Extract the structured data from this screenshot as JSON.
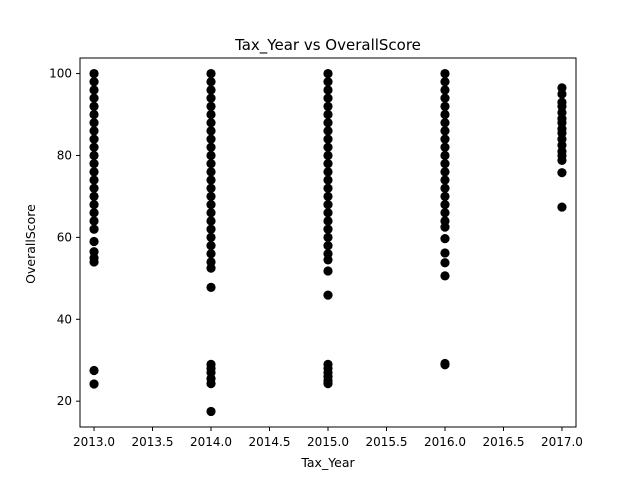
{
  "chart_data": {
    "type": "scatter",
    "title": "Tax_Year vs OverallScore",
    "xlabel": "Tax_Year",
    "ylabel": "OverallScore",
    "xlim": [
      2012.88,
      2017.12
    ],
    "ylim": [
      13.7,
      103.8
    ],
    "x_ticks": [
      2013.0,
      2013.5,
      2014.0,
      2014.5,
      2015.0,
      2015.5,
      2016.0,
      2016.5,
      2017.0
    ],
    "x_tick_labels": [
      "2013.0",
      "2013.5",
      "2014.0",
      "2014.5",
      "2015.0",
      "2015.5",
      "2016.0",
      "2016.5",
      "2017.0"
    ],
    "y_ticks": [
      20,
      40,
      60,
      80,
      100
    ],
    "y_tick_labels": [
      "20",
      "40",
      "60",
      "80",
      "100"
    ],
    "grid": false,
    "marker_color": "#000000",
    "series": [
      {
        "points": [
          {
            "x": 2013,
            "y": 100
          },
          {
            "x": 2013,
            "y": 98
          },
          {
            "x": 2013,
            "y": 96
          },
          {
            "x": 2013,
            "y": 94
          },
          {
            "x": 2013,
            "y": 92
          },
          {
            "x": 2013,
            "y": 90
          },
          {
            "x": 2013,
            "y": 88
          },
          {
            "x": 2013,
            "y": 86
          },
          {
            "x": 2013,
            "y": 84
          },
          {
            "x": 2013,
            "y": 82
          },
          {
            "x": 2013,
            "y": 80
          },
          {
            "x": 2013,
            "y": 78
          },
          {
            "x": 2013,
            "y": 76
          },
          {
            "x": 2013,
            "y": 74
          },
          {
            "x": 2013,
            "y": 72
          },
          {
            "x": 2013,
            "y": 70
          },
          {
            "x": 2013,
            "y": 68
          },
          {
            "x": 2013,
            "y": 66
          },
          {
            "x": 2013,
            "y": 64
          },
          {
            "x": 2013,
            "y": 62
          },
          {
            "x": 2013,
            "y": 59
          },
          {
            "x": 2013,
            "y": 56.5
          },
          {
            "x": 2013,
            "y": 55
          },
          {
            "x": 2013,
            "y": 54
          },
          {
            "x": 2013,
            "y": 27.5
          },
          {
            "x": 2013,
            "y": 24.2
          },
          {
            "x": 2014,
            "y": 100
          },
          {
            "x": 2014,
            "y": 98
          },
          {
            "x": 2014,
            "y": 96
          },
          {
            "x": 2014,
            "y": 94
          },
          {
            "x": 2014,
            "y": 92
          },
          {
            "x": 2014,
            "y": 90
          },
          {
            "x": 2014,
            "y": 88
          },
          {
            "x": 2014,
            "y": 86
          },
          {
            "x": 2014,
            "y": 84
          },
          {
            "x": 2014,
            "y": 82
          },
          {
            "x": 2014,
            "y": 80
          },
          {
            "x": 2014,
            "y": 78
          },
          {
            "x": 2014,
            "y": 76
          },
          {
            "x": 2014,
            "y": 74
          },
          {
            "x": 2014,
            "y": 72
          },
          {
            "x": 2014,
            "y": 70
          },
          {
            "x": 2014,
            "y": 68
          },
          {
            "x": 2014,
            "y": 66
          },
          {
            "x": 2014,
            "y": 64
          },
          {
            "x": 2014,
            "y": 62
          },
          {
            "x": 2014,
            "y": 60
          },
          {
            "x": 2014,
            "y": 58
          },
          {
            "x": 2014,
            "y": 56
          },
          {
            "x": 2014,
            "y": 54
          },
          {
            "x": 2014,
            "y": 52.5
          },
          {
            "x": 2014,
            "y": 47.8
          },
          {
            "x": 2014,
            "y": 29
          },
          {
            "x": 2014,
            "y": 28
          },
          {
            "x": 2014,
            "y": 27
          },
          {
            "x": 2014,
            "y": 25.5
          },
          {
            "x": 2014,
            "y": 24.3
          },
          {
            "x": 2014,
            "y": 17.5
          },
          {
            "x": 2015,
            "y": 100
          },
          {
            "x": 2015,
            "y": 98
          },
          {
            "x": 2015,
            "y": 96
          },
          {
            "x": 2015,
            "y": 94
          },
          {
            "x": 2015,
            "y": 92
          },
          {
            "x": 2015,
            "y": 90
          },
          {
            "x": 2015,
            "y": 88
          },
          {
            "x": 2015,
            "y": 86
          },
          {
            "x": 2015,
            "y": 84
          },
          {
            "x": 2015,
            "y": 82
          },
          {
            "x": 2015,
            "y": 80
          },
          {
            "x": 2015,
            "y": 78
          },
          {
            "x": 2015,
            "y": 76
          },
          {
            "x": 2015,
            "y": 74
          },
          {
            "x": 2015,
            "y": 72
          },
          {
            "x": 2015,
            "y": 70
          },
          {
            "x": 2015,
            "y": 68
          },
          {
            "x": 2015,
            "y": 66
          },
          {
            "x": 2015,
            "y": 64
          },
          {
            "x": 2015,
            "y": 62
          },
          {
            "x": 2015,
            "y": 60
          },
          {
            "x": 2015,
            "y": 58
          },
          {
            "x": 2015,
            "y": 56
          },
          {
            "x": 2015,
            "y": 54.5
          },
          {
            "x": 2015,
            "y": 51.8
          },
          {
            "x": 2015,
            "y": 45.9
          },
          {
            "x": 2015,
            "y": 29
          },
          {
            "x": 2015,
            "y": 28
          },
          {
            "x": 2015,
            "y": 27
          },
          {
            "x": 2015,
            "y": 26
          },
          {
            "x": 2015,
            "y": 25
          },
          {
            "x": 2015,
            "y": 24.3
          },
          {
            "x": 2016,
            "y": 100
          },
          {
            "x": 2016,
            "y": 98
          },
          {
            "x": 2016,
            "y": 96
          },
          {
            "x": 2016,
            "y": 94
          },
          {
            "x": 2016,
            "y": 92
          },
          {
            "x": 2016,
            "y": 90
          },
          {
            "x": 2016,
            "y": 88
          },
          {
            "x": 2016,
            "y": 86
          },
          {
            "x": 2016,
            "y": 84
          },
          {
            "x": 2016,
            "y": 82
          },
          {
            "x": 2016,
            "y": 80
          },
          {
            "x": 2016,
            "y": 78
          },
          {
            "x": 2016,
            "y": 76
          },
          {
            "x": 2016,
            "y": 74
          },
          {
            "x": 2016,
            "y": 72
          },
          {
            "x": 2016,
            "y": 70
          },
          {
            "x": 2016,
            "y": 68
          },
          {
            "x": 2016,
            "y": 66
          },
          {
            "x": 2016,
            "y": 64
          },
          {
            "x": 2016,
            "y": 62.5
          },
          {
            "x": 2016,
            "y": 59.7
          },
          {
            "x": 2016,
            "y": 56.2
          },
          {
            "x": 2016,
            "y": 53.8
          },
          {
            "x": 2016,
            "y": 50.6
          },
          {
            "x": 2016,
            "y": 29.2
          },
          {
            "x": 2016,
            "y": 28.9
          },
          {
            "x": 2017,
            "y": 96.5
          },
          {
            "x": 2017,
            "y": 95
          },
          {
            "x": 2017,
            "y": 93
          },
          {
            "x": 2017,
            "y": 92
          },
          {
            "x": 2017,
            "y": 90.5
          },
          {
            "x": 2017,
            "y": 89
          },
          {
            "x": 2017,
            "y": 88
          },
          {
            "x": 2017,
            "y": 86.5
          },
          {
            "x": 2017,
            "y": 85.5
          },
          {
            "x": 2017,
            "y": 84
          },
          {
            "x": 2017,
            "y": 82.5
          },
          {
            "x": 2017,
            "y": 81
          },
          {
            "x": 2017,
            "y": 80
          },
          {
            "x": 2017,
            "y": 78.8
          },
          {
            "x": 2017,
            "y": 75.8
          },
          {
            "x": 2017,
            "y": 67.4
          }
        ]
      }
    ]
  }
}
